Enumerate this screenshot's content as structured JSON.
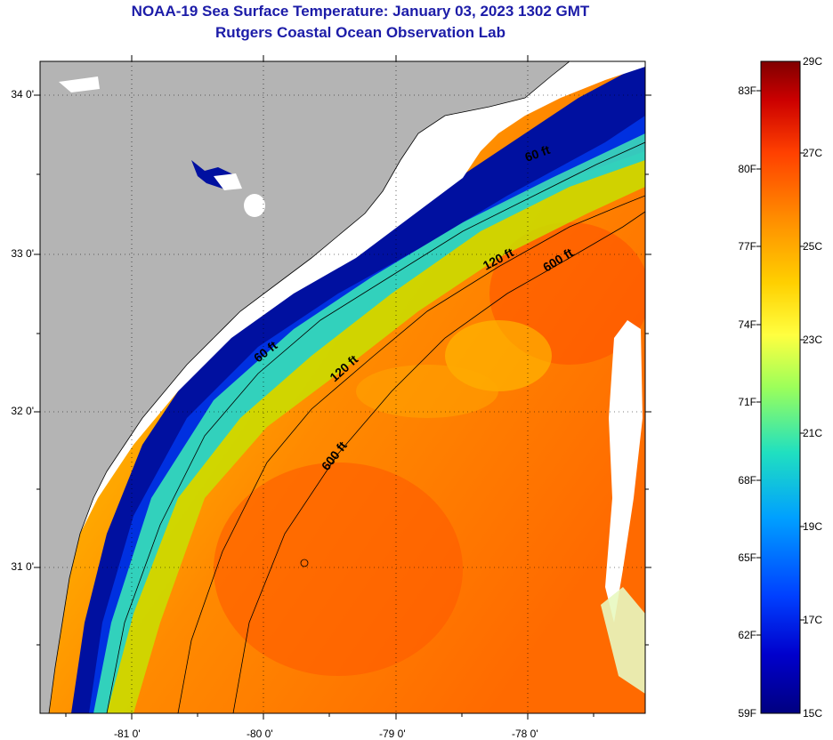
{
  "title": {
    "line1": "NOAA-19 Sea Surface Temperature:  January 03, 2023 1302 GMT",
    "line2": "Rutgers Coastal Ocean Observation Lab"
  },
  "map": {
    "lat_labels": [
      "34 0'",
      "33 0'",
      "32 0'",
      "31 0'"
    ],
    "lon_labels": [
      "-81 0'",
      "-80 0'",
      "-79 0'",
      "-78 0'"
    ],
    "contour_labels": [
      "60 ft",
      "120 ft",
      "600 ft",
      "60 ft",
      "120 ft",
      "600 ft"
    ]
  },
  "colorbar": {
    "fahrenheit_labels": [
      "83F",
      "80F",
      "77F",
      "74F",
      "71F",
      "68F",
      "65F",
      "62F",
      "59F"
    ],
    "celsius_labels": [
      "29C",
      "27C",
      "25C",
      "23C",
      "21C",
      "19C",
      "17C",
      "15C"
    ],
    "colors": [
      "#800000",
      "#cc0000",
      "#ff4000",
      "#ff8c00",
      "#ffd000",
      "#ffff40",
      "#9cff5a",
      "#20e0c0",
      "#00a0ff",
      "#0040ff",
      "#0000cc",
      "#000080"
    ]
  },
  "colors": {
    "land": "#b4b4b4",
    "cloud": "#ffffff",
    "title": "#1c1ca8"
  }
}
